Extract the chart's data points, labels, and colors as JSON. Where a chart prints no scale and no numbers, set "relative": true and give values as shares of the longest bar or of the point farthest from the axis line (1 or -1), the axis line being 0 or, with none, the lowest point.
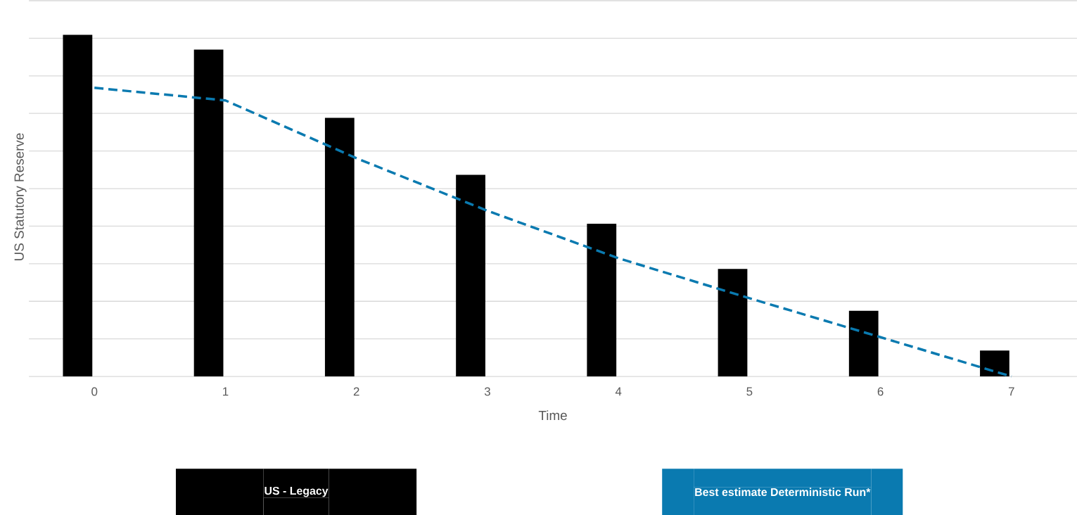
{
  "chart_data": {
    "type": "bar",
    "relative": true,
    "xlabel": "Time",
    "ylabel": "US Statutory Reserve",
    "categories": [
      "0",
      "1",
      "2",
      "3",
      "4",
      "5",
      "6",
      "7"
    ],
    "grid": "y",
    "legend": "bottom",
    "series": [
      {
        "name": "US - Legacy",
        "color": "#000000",
        "values": [
          1,
          0.957,
          0.757,
          0.59,
          0.447,
          0.315,
          0.192,
          0.076
        ]
      },
      {
        "name": "Best estimate Deterministic Run*",
        "type": "line",
        "line_style": "dashed",
        "color": "#0a7ab0",
        "values": [
          0.845,
          0.808,
          0.639,
          0.485,
          0.346,
          0.229,
          0.115,
          0
        ]
      }
    ]
  }
}
